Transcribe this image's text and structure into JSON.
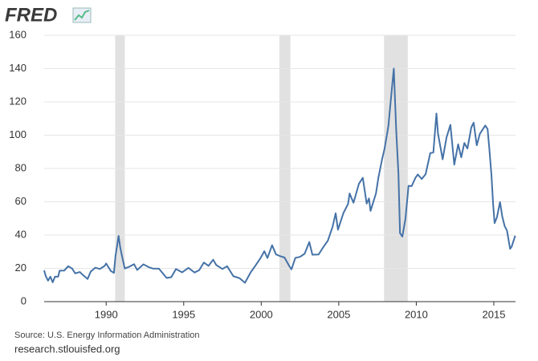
{
  "chart_data": {
    "type": "line",
    "logo": "FRED",
    "source": "Source: U.S. Energy Information Administration",
    "url": "research.stlouisfed.org",
    "xlim": [
      1986,
      2016.4
    ],
    "xticks": [
      1990,
      1995,
      2000,
      2005,
      2010,
      2015
    ],
    "ylim": [
      0,
      160
    ],
    "yticks": [
      0,
      20,
      40,
      60,
      80,
      100,
      120,
      140,
      160
    ],
    "grid": true,
    "shaded_periods": [
      [
        1990.58,
        1991.2
      ],
      [
        2001.17,
        2001.88
      ],
      [
        2007.92,
        2009.45
      ]
    ],
    "series": [
      {
        "color": "#4572a7",
        "x": [
          1986.0,
          1986.1,
          1986.25,
          1986.4,
          1986.55,
          1986.7,
          1986.9,
          1987.0,
          1987.3,
          1987.55,
          1987.8,
          1988.0,
          1988.3,
          1988.5,
          1988.8,
          1989.0,
          1989.3,
          1989.6,
          1989.9,
          1990.0,
          1990.3,
          1990.5,
          1990.6,
          1990.8,
          1990.9,
          1991.0,
          1991.2,
          1991.5,
          1991.8,
          1992.0,
          1992.4,
          1992.8,
          1993.0,
          1993.4,
          1993.9,
          1994.2,
          1994.5,
          1994.9,
          1995.3,
          1995.7,
          1996.0,
          1996.3,
          1996.6,
          1996.9,
          1997.1,
          1997.5,
          1997.8,
          1998.2,
          1998.6,
          1998.95,
          1999.3,
          1999.6,
          1999.95,
          2000.2,
          2000.4,
          2000.7,
          2000.95,
          2001.2,
          2001.5,
          2001.8,
          2001.95,
          2002.2,
          2002.5,
          2002.8,
          2003.1,
          2003.3,
          2003.7,
          2003.95,
          2004.3,
          2004.6,
          2004.8,
          2004.95,
          2005.3,
          2005.6,
          2005.7,
          2005.95,
          2006.3,
          2006.55,
          2006.8,
          2006.95,
          2007.05,
          2007.4,
          2007.55,
          2007.8,
          2007.95,
          2008.2,
          2008.4,
          2008.55,
          2008.7,
          2008.85,
          2008.95,
          2009.1,
          2009.3,
          2009.5,
          2009.7,
          2009.95,
          2010.1,
          2010.35,
          2010.6,
          2010.9,
          2011.1,
          2011.3,
          2011.4,
          2011.7,
          2011.95,
          2012.2,
          2012.45,
          2012.7,
          2012.9,
          2013.1,
          2013.3,
          2013.55,
          2013.7,
          2013.9,
          2014.1,
          2014.45,
          2014.6,
          2014.7,
          2014.85,
          2014.95,
          2015.05,
          2015.2,
          2015.4,
          2015.55,
          2015.7,
          2015.85,
          2015.95,
          2016.05,
          2016.15,
          2016.38
        ],
        "values": [
          18.8,
          15.4,
          12.6,
          15,
          11.6,
          15,
          15,
          18.6,
          18.7,
          21.3,
          19.9,
          17,
          17.8,
          16,
          13.6,
          18,
          20.4,
          19.6,
          21.5,
          22.9,
          18.4,
          17.3,
          27.3,
          39.5,
          32.9,
          28.2,
          19.9,
          21,
          22.5,
          19,
          22.4,
          20.5,
          19.9,
          19.8,
          14.2,
          14.7,
          19.6,
          17.6,
          20.3,
          17.5,
          18.9,
          23.5,
          21.5,
          25.2,
          22,
          19.6,
          21.3,
          15.3,
          14.1,
          11.3,
          17.3,
          21.3,
          26.1,
          30.3,
          26.2,
          33.9,
          28.4,
          27.4,
          26.5,
          21.5,
          19.4,
          26.3,
          26.9,
          28.8,
          35.8,
          28.2,
          28.3,
          32,
          36.7,
          44.9,
          53.1,
          43.2,
          53.2,
          58.7,
          65,
          59.4,
          70.8,
          74.4,
          58.9,
          62,
          54.5,
          65,
          74.1,
          85.8,
          91.7,
          105.4,
          125.4,
          140,
          104,
          76.6,
          41.1,
          39.1,
          49.6,
          69.6,
          69.4,
          74.5,
          76.4,
          73.7,
          76.5,
          89.2,
          89.6,
          113,
          101,
          85.5,
          98.6,
          106.2,
          82.3,
          94.5,
          86.7,
          95.3,
          92,
          104.7,
          107.5,
          93.9,
          100.8,
          105.8,
          103.6,
          93.2,
          75.8,
          59.3,
          47.2,
          50.6,
          59.8,
          50.9,
          45.4,
          42.7,
          37.2,
          31.7,
          33,
          39.6
        ]
      }
    ]
  }
}
